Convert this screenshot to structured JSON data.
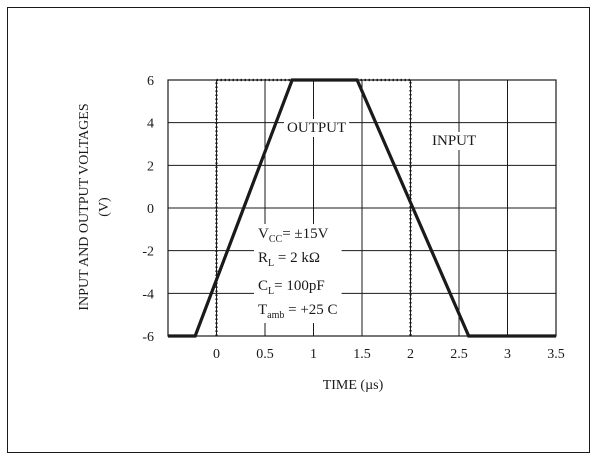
{
  "chart_data": {
    "type": "line",
    "title": "",
    "xlabel": "TIME (µs)",
    "ylabel": "INPUT AND OUTPUT VOLTAGES",
    "ylabel_unit": "(V)",
    "xlim": [
      -0.5,
      3.5
    ],
    "ylim": [
      -6,
      6
    ],
    "x_ticks": [
      0,
      0.5,
      1,
      1.5,
      2,
      2.5,
      3,
      3.5
    ],
    "x_tick_labels": [
      "0",
      "0.5",
      "1",
      "1.5",
      "2",
      "2.5",
      "3",
      "3.5"
    ],
    "y_ticks": [
      -6,
      -4,
      -2,
      0,
      2,
      4,
      6
    ],
    "y_tick_labels": [
      "-6",
      "-4",
      "-2",
      "0",
      "2",
      "4",
      "6"
    ],
    "grid": true,
    "series": [
      {
        "name": "OUTPUT",
        "style": "solid-thick",
        "color": "#1a1a1a",
        "x": [
          -0.5,
          -0.22,
          0.78,
          1.45,
          2.6,
          3.5
        ],
        "y": [
          -6,
          -6,
          6,
          6,
          -6,
          -6
        ]
      },
      {
        "name": "INPUT",
        "style": "dotted",
        "color": "#1a1a1a",
        "x": [
          0,
          0,
          2.0,
          2.0
        ],
        "y": [
          -6,
          6,
          6,
          -6
        ]
      }
    ],
    "annotations": {
      "vcc": {
        "main": "V",
        "sub": "CC",
        "rest": "= ±15V"
      },
      "rl": {
        "main": "R",
        "sub": "L",
        "rest": " = 2 kΩ"
      },
      "cl": {
        "main": "C",
        "sub": "L",
        "rest": "= 100pF"
      },
      "tamb": {
        "main": "T",
        "sub": "amb",
        "rest": " = +25  C"
      }
    }
  }
}
